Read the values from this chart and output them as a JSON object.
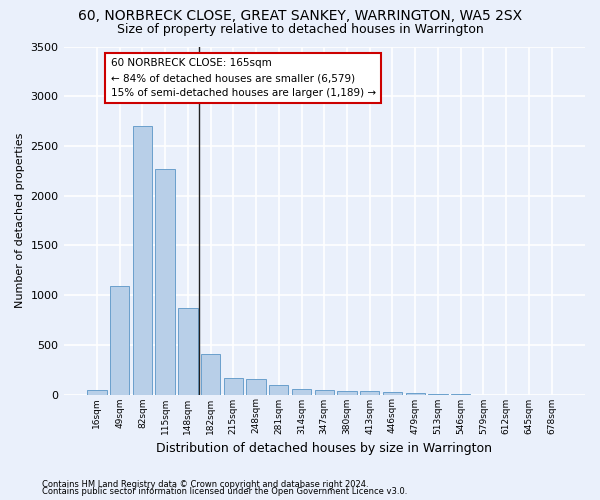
{
  "title": "60, NORBRECK CLOSE, GREAT SANKEY, WARRINGTON, WA5 2SX",
  "subtitle": "Size of property relative to detached houses in Warrington",
  "xlabel": "Distribution of detached houses by size in Warrington",
  "ylabel": "Number of detached properties",
  "categories": [
    "16sqm",
    "49sqm",
    "82sqm",
    "115sqm",
    "148sqm",
    "182sqm",
    "215sqm",
    "248sqm",
    "281sqm",
    "314sqm",
    "347sqm",
    "380sqm",
    "413sqm",
    "446sqm",
    "479sqm",
    "513sqm",
    "546sqm",
    "579sqm",
    "612sqm",
    "645sqm",
    "678sqm"
  ],
  "values": [
    50,
    1090,
    2700,
    2270,
    870,
    410,
    165,
    160,
    95,
    60,
    50,
    40,
    35,
    25,
    20,
    5,
    5,
    0,
    0,
    0,
    0
  ],
  "bar_color": "#b8cfe8",
  "bar_edge_color": "#6aa0cc",
  "vline_pos": 4.5,
  "annotation_title": "60 NORBRECK CLOSE: 165sqm",
  "annotation_line1": "← 84% of detached houses are smaller (6,579)",
  "annotation_line2": "15% of semi-detached houses are larger (1,189) →",
  "annotation_box_color": "#ffffff",
  "annotation_box_edge_color": "#cc0000",
  "ylim": [
    0,
    3500
  ],
  "yticks": [
    0,
    500,
    1000,
    1500,
    2000,
    2500,
    3000,
    3500
  ],
  "footnote1": "Contains HM Land Registry data © Crown copyright and database right 2024.",
  "footnote2": "Contains public sector information licensed under the Open Government Licence v3.0.",
  "background_color": "#eaf0fb",
  "plot_background": "#eaf0fb",
  "grid_color": "#ffffff",
  "title_fontsize": 10,
  "subtitle_fontsize": 9,
  "ylabel_fontsize": 8,
  "xlabel_fontsize": 9
}
